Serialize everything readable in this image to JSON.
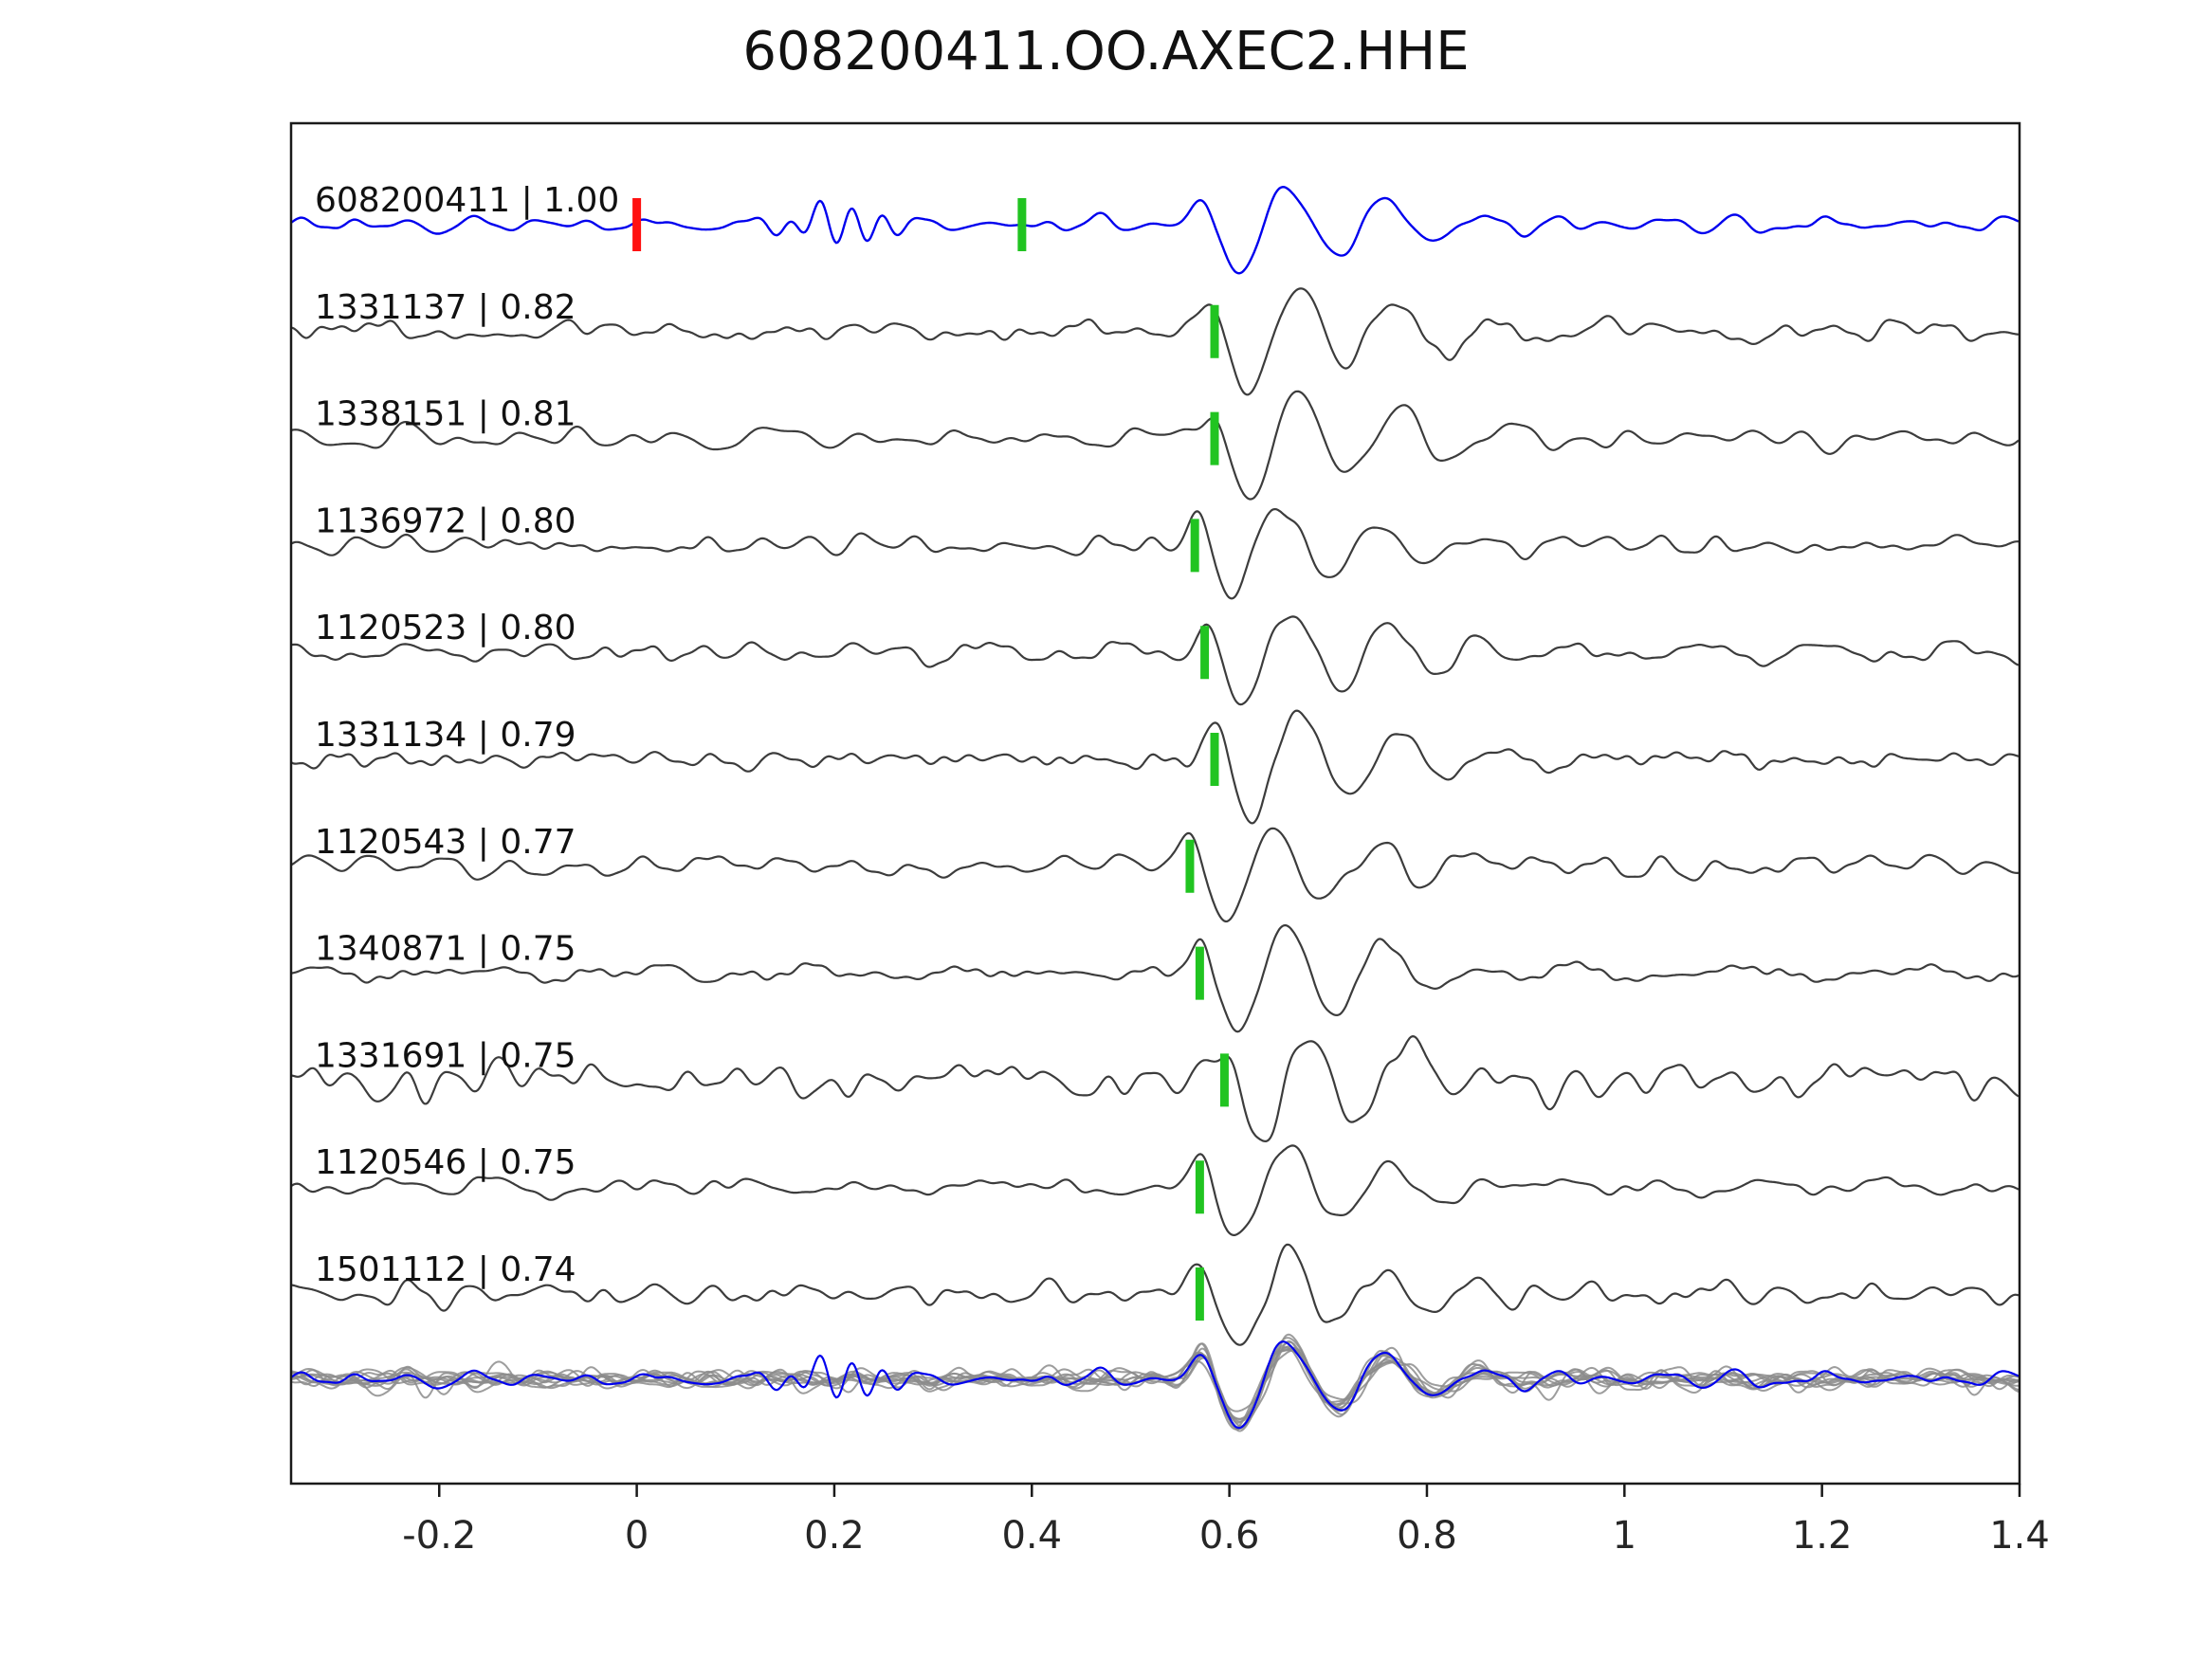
{
  "chart_data": {
    "type": "line",
    "title": "608200411.OO.AXEC2.HHE",
    "xlabel": "",
    "ylabel": "",
    "xlim": [
      -0.35,
      1.4
    ],
    "x_ticks": [
      "-0.2",
      "0",
      "0.2",
      "0.4",
      "0.6",
      "0.8",
      "1",
      "1.2",
      "1.4"
    ],
    "x_tick_values": [
      -0.2,
      0,
      0.2,
      0.4,
      0.6,
      0.8,
      1,
      1.2,
      1.4
    ],
    "grid": false,
    "legend": "none",
    "colors": {
      "template_trace": "#0000ee",
      "detection_trace": "#3c3c3c",
      "overlay_trace": "#8c8c8c",
      "pick_marker": "#21c421",
      "origin_marker": "#ff1111",
      "spine": "#1a1a1a",
      "tick_label": "#262626",
      "label_text": "#111111"
    },
    "traces": [
      {
        "label": "608200411 | 1.00",
        "id": "608200411",
        "correlation": 1.0,
        "is_template": true,
        "pick_time": 0.39,
        "origin_time": 0.0,
        "event_time": 0.585,
        "event_amp": 52,
        "noise_amp": 4,
        "burst_time": 0.21,
        "burst_amp": 20,
        "seed": 101
      },
      {
        "label": "1331137 | 0.82",
        "id": "1331137",
        "correlation": 0.82,
        "pick_time": 0.585,
        "event_time": 0.595,
        "event_amp": 62,
        "noise_amp": 6,
        "seed": 2
      },
      {
        "label": "1338151 | 0.81",
        "id": "1338151",
        "correlation": 0.81,
        "pick_time": 0.585,
        "event_time": 0.595,
        "event_amp": 64,
        "noise_amp": 6,
        "seed": 3
      },
      {
        "label": "1136972 | 0.80",
        "id": "1136972",
        "correlation": 0.8,
        "pick_time": 0.565,
        "event_time": 0.578,
        "event_amp": 58,
        "noise_amp": 6,
        "seed": 4
      },
      {
        "label": "1120523 | 0.80",
        "id": "1120523",
        "correlation": 0.8,
        "pick_time": 0.575,
        "event_time": 0.588,
        "event_amp": 62,
        "noise_amp": 6,
        "seed": 5
      },
      {
        "label": "1331134 | 0.79",
        "id": "1331134",
        "correlation": 0.79,
        "pick_time": 0.585,
        "event_time": 0.598,
        "event_amp": 64,
        "noise_amp": 6,
        "seed": 6
      },
      {
        "label": "1120543 | 0.77",
        "id": "1120543",
        "correlation": 0.77,
        "pick_time": 0.56,
        "event_time": 0.573,
        "event_amp": 56,
        "noise_amp": 6,
        "seed": 7
      },
      {
        "label": "1340871 | 0.75",
        "id": "1340871",
        "correlation": 0.75,
        "pick_time": 0.57,
        "event_time": 0.582,
        "event_amp": 66,
        "noise_amp": 6,
        "seed": 8
      },
      {
        "label": "1331691 | 0.75",
        "id": "1331691",
        "correlation": 0.75,
        "pick_time": 0.595,
        "event_time": 0.607,
        "event_amp": 64,
        "noise_amp": 12,
        "seed": 9
      },
      {
        "label": "1120546 | 0.75",
        "id": "1120546",
        "correlation": 0.75,
        "pick_time": 0.57,
        "event_time": 0.583,
        "event_amp": 58,
        "noise_amp": 6,
        "seed": 10
      },
      {
        "label": "1501112 | 0.74",
        "id": "1501112",
        "correlation": 0.74,
        "pick_time": 0.57,
        "event_time": 0.583,
        "event_amp": 56,
        "noise_amp": 7,
        "seed": 11
      }
    ],
    "overlay": {
      "description": "all detection traces aligned on pick with template waveform overlaid",
      "align_time": 0.585,
      "amp_scale": 0.9
    }
  }
}
